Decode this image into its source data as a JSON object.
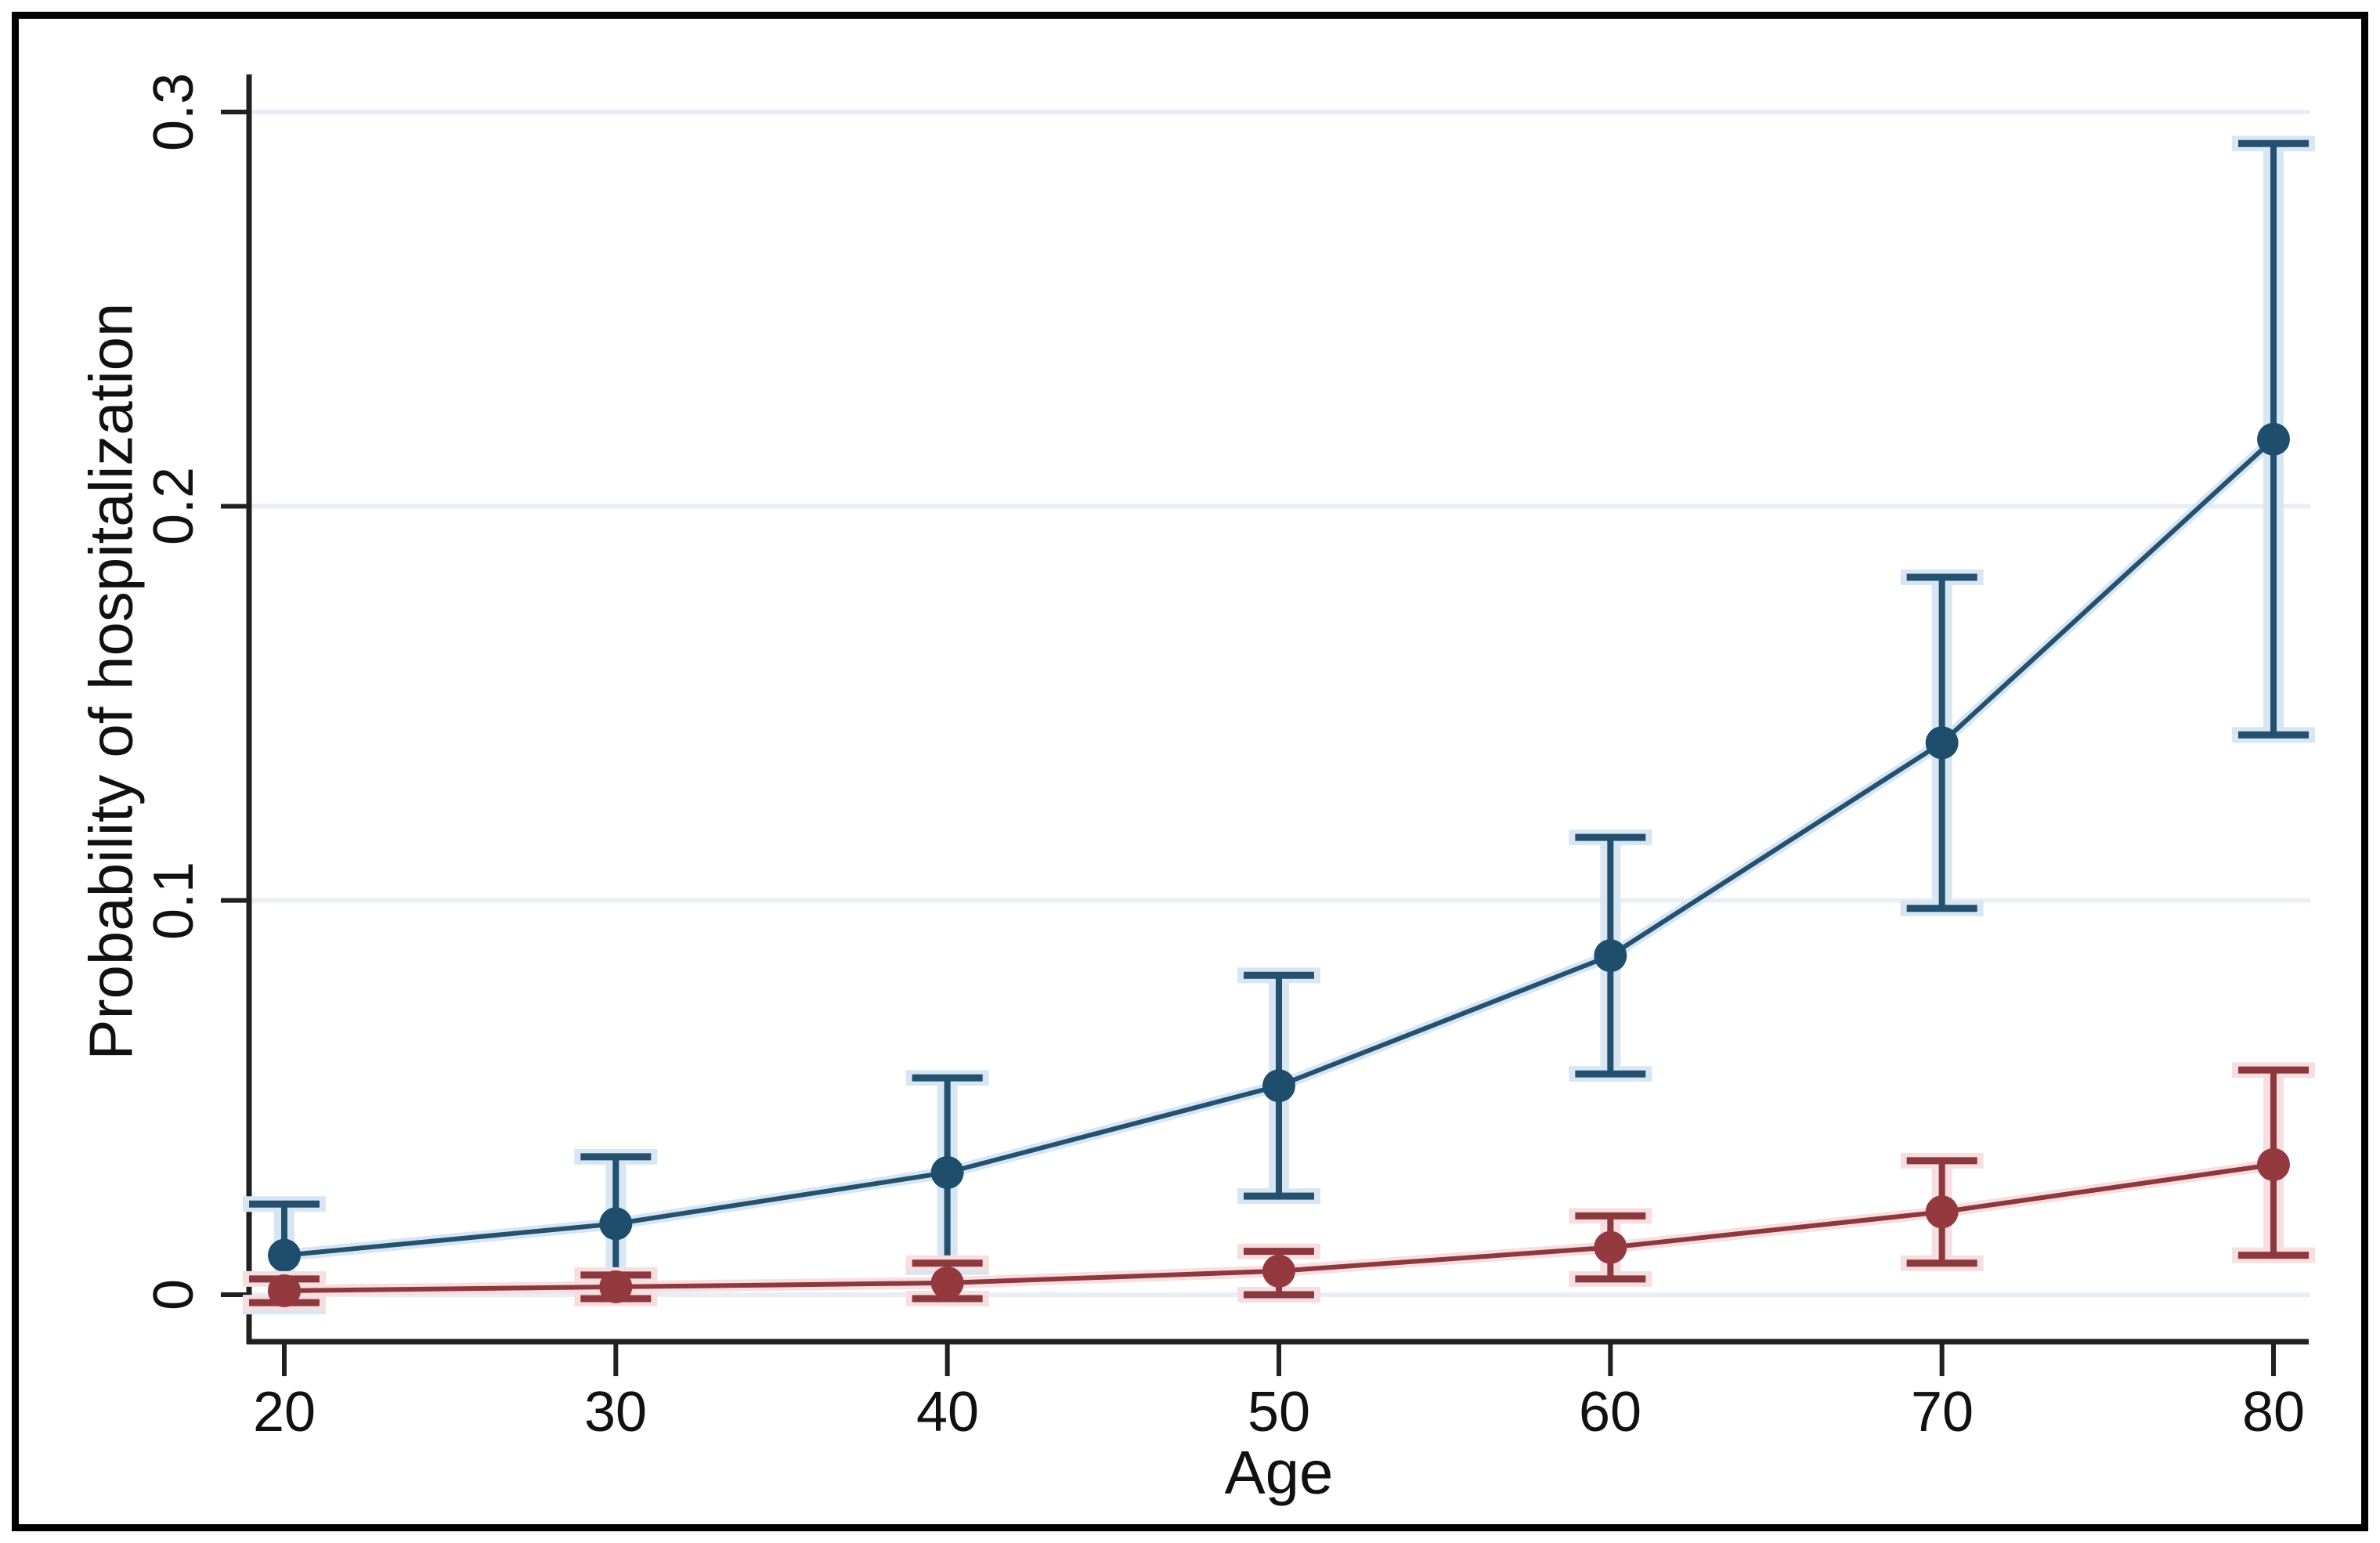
{
  "figure": {
    "background": "#ffffff",
    "frame_color": "#000000",
    "axis_color": "#202020",
    "gridline_color": "#e9eef4",
    "text_color": "#111111"
  },
  "chart_data": {
    "type": "line",
    "title": "",
    "xlabel": "Age",
    "ylabel": "Probability of hospitalization",
    "x": [
      20,
      30,
      40,
      50,
      60,
      70,
      80
    ],
    "x_tick_labels": [
      "20",
      "30",
      "40",
      "50",
      "60",
      "70",
      "80"
    ],
    "y_tick_values": [
      0,
      0.1,
      0.2,
      0.3
    ],
    "y_tick_labels": [
      "0",
      "0.1",
      "0.2",
      "0.3"
    ],
    "xlim": [
      18.7,
      81.1
    ],
    "ylim": [
      -0.012,
      0.309
    ],
    "grid": true,
    "legend": "none",
    "error_bars": true,
    "series": [
      {
        "name": "navy-series",
        "marker": "circle",
        "color": "#1f4e6d",
        "line_color": "#24516f",
        "halo_color": "#d8e6f3",
        "values": [
          0.01,
          0.018,
          0.031,
          0.053,
          0.086,
          0.14,
          0.217
        ],
        "ci_lower": [
          -0.003,
          0.001,
          0.007,
          0.025,
          0.056,
          0.098,
          0.142
        ],
        "ci_upper": [
          0.023,
          0.035,
          0.055,
          0.081,
          0.116,
          0.182,
          0.292
        ]
      },
      {
        "name": "maroon-series",
        "marker": "circle",
        "color": "#943a3e",
        "line_color": "#8d383d",
        "halo_color": "#f6dee1",
        "values": [
          0.001,
          0.002,
          0.003,
          0.006,
          0.012,
          0.021,
          0.033
        ],
        "ci_lower": [
          -0.002,
          -0.001,
          -0.001,
          0.0,
          0.004,
          0.008,
          0.01
        ],
        "ci_upper": [
          0.004,
          0.005,
          0.008,
          0.011,
          0.02,
          0.034,
          0.057
        ]
      }
    ]
  }
}
